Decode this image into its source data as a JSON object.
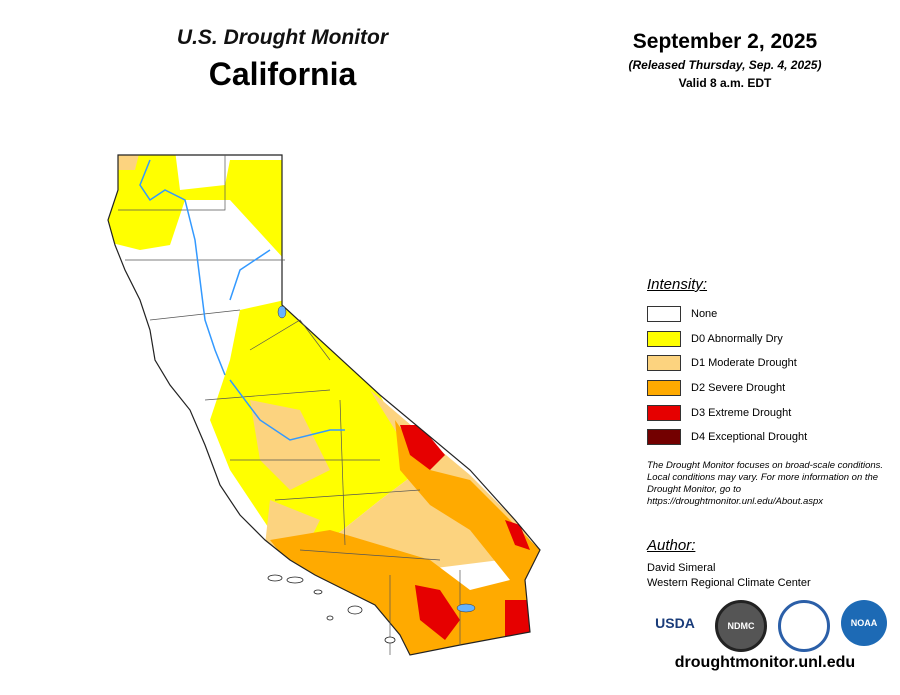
{
  "header": {
    "title": "U.S. Drought Monitor",
    "state": "California",
    "date": "September 2, 2025",
    "released": "(Released Thursday, Sep. 4, 2025)",
    "valid": "Valid 8 a.m. EDT"
  },
  "legend": {
    "title": "Intensity:",
    "items": [
      {
        "label": "None",
        "color": "#ffffff"
      },
      {
        "label": "D0 Abnormally Dry",
        "color": "#ffff00"
      },
      {
        "label": "D1 Moderate Drought",
        "color": "#fcd37f"
      },
      {
        "label": "D2 Severe Drought",
        "color": "#ffaa00"
      },
      {
        "label": "D3 Extreme Drought",
        "color": "#e60000"
      },
      {
        "label": "D4 Exceptional Drought",
        "color": "#730000"
      }
    ]
  },
  "note": "The Drought Monitor focuses on broad-scale conditions. Local conditions may vary. For more information on the Drought Monitor, go to https://droughtmonitor.unl.edu/About.aspx",
  "author": {
    "heading": "Author:",
    "lines": [
      "David Simeral",
      "Western Regional Climate Center"
    ]
  },
  "logos": [
    "USDA",
    "NDMC",
    "NOAA"
  ],
  "url": "droughtmonitor.unl.edu"
}
